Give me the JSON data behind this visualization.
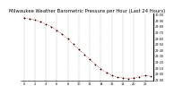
{
  "title": "Milwaukee Weather Barometric Pressure per Hour (Last 24 Hours)",
  "bg_color": "#ffffff",
  "grid_color": "#888888",
  "line_color": "#cc0000",
  "marker_color": "#000000",
  "hours": [
    0,
    1,
    2,
    3,
    4,
    5,
    6,
    7,
    8,
    9,
    10,
    11,
    12,
    13,
    14,
    15,
    16,
    17,
    18,
    19,
    20,
    21,
    22,
    23
  ],
  "pressure": [
    29.95,
    29.93,
    29.91,
    29.88,
    29.84,
    29.8,
    29.74,
    29.67,
    29.59,
    29.5,
    29.41,
    29.33,
    29.24,
    29.16,
    29.08,
    29.02,
    28.97,
    28.94,
    28.93,
    28.92,
    28.93,
    28.95,
    28.97,
    28.96
  ],
  "ylim": [
    28.88,
    30.02
  ],
  "ytick_values": [
    28.9,
    29.0,
    29.1,
    29.2,
    29.3,
    29.4,
    29.5,
    29.6,
    29.7,
    29.8,
    29.9,
    30.0
  ],
  "ytick_labels": [
    "28.90",
    "29.00",
    "29.10",
    "29.20",
    "29.30",
    "29.40",
    "29.50",
    "29.60",
    "29.70",
    "29.80",
    "29.90",
    "30.00"
  ],
  "xtick_values": [
    0,
    2,
    4,
    6,
    8,
    10,
    12,
    14,
    16,
    18,
    20,
    22
  ],
  "xtick_labels": [
    "0",
    "2",
    "4",
    "6",
    "8",
    "10",
    "12",
    "14",
    "16",
    "18",
    "20",
    "22"
  ],
  "title_fontsize": 3.8,
  "tick_fontsize": 2.5,
  "vgrid_positions": [
    0,
    2,
    4,
    6,
    8,
    10,
    12,
    14,
    16,
    18,
    20,
    22
  ]
}
